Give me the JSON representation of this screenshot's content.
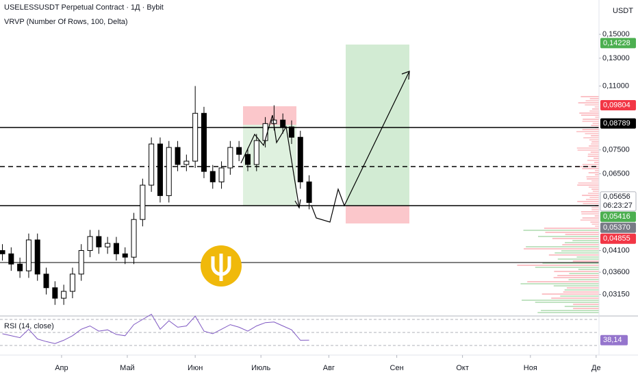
{
  "chart_data": [
    {
      "type": "candlestick",
      "title": "USELESSUSDT Perpetual Contract · 1Д · Bybit",
      "subtitle": "VRVP (Number Of Rows, 100, Delta)",
      "currency": "USDT",
      "log_scale": true,
      "up_color": "#ffffff",
      "down_color": "#000000",
      "x": [
        -27,
        -23,
        -19,
        -15,
        -11,
        -7,
        -3,
        1,
        5,
        9,
        13,
        17,
        21,
        25,
        29,
        33,
        37,
        41,
        45,
        49,
        53,
        57,
        61,
        65,
        69,
        73,
        77,
        81,
        85,
        89,
        93,
        97,
        101,
        105,
        109,
        113
      ],
      "open": [
        0.041,
        0.0402,
        0.0378,
        0.0363,
        0.0437,
        0.0356,
        0.0328,
        0.0308,
        0.0321,
        0.0356,
        0.041,
        0.0446,
        0.0419,
        0.0428,
        0.0402,
        0.0394,
        0.0494,
        0.0607,
        0.0777,
        0.057,
        0.0761,
        0.0687,
        0.0701,
        0.0934,
        0.0659,
        0.0619,
        0.0673,
        0.0761,
        0.073,
        0.0687,
        0.0793,
        0.0878,
        0.0897,
        0.0861,
        0.0809,
        0.0619
      ],
      "high": [
        0.0426,
        0.0418,
        0.0393,
        0.0454,
        0.0454,
        0.037,
        0.0341,
        0.0334,
        0.037,
        0.0426,
        0.0464,
        0.0464,
        0.0445,
        0.0445,
        0.0418,
        0.0514,
        0.0631,
        0.0808,
        0.0808,
        0.0791,
        0.0791,
        0.0729,
        0.11,
        0.0971,
        0.0685,
        0.07,
        0.0791,
        0.0791,
        0.0759,
        0.0825,
        0.0913,
        0.098,
        0.0933,
        0.0895,
        0.0841,
        0.0644
      ],
      "low": [
        0.0386,
        0.0363,
        0.0348,
        0.0348,
        0.0342,
        0.0315,
        0.0296,
        0.0296,
        0.0308,
        0.0342,
        0.0394,
        0.0402,
        0.0402,
        0.0386,
        0.0378,
        0.0378,
        0.0474,
        0.0583,
        0.0547,
        0.0547,
        0.066,
        0.066,
        0.0673,
        0.0633,
        0.0594,
        0.0594,
        0.0646,
        0.0701,
        0.066,
        0.066,
        0.0761,
        0.0843,
        0.0827,
        0.0777,
        0.0594,
        0.0525
      ],
      "close": [
        0.0402,
        0.0378,
        0.0363,
        0.0437,
        0.0356,
        0.0328,
        0.0308,
        0.0321,
        0.0356,
        0.041,
        0.0446,
        0.0419,
        0.0428,
        0.0402,
        0.0394,
        0.0494,
        0.0607,
        0.0777,
        0.057,
        0.0761,
        0.0687,
        0.0701,
        0.0934,
        0.0659,
        0.0619,
        0.0673,
        0.0761,
        0.073,
        0.0687,
        0.0793,
        0.0878,
        0.0897,
        0.0861,
        0.0809,
        0.0619,
        0.0547
      ],
      "xlim": [
        -28.1,
        245.3
      ],
      "xticks": [
        {
          "value": 0,
          "label": "Апр"
        },
        {
          "value": 30,
          "label": "Май"
        },
        {
          "value": 61,
          "label": "Июн"
        },
        {
          "value": 91,
          "label": "Июль"
        },
        {
          "value": 122,
          "label": "Авг"
        },
        {
          "value": 153,
          "label": "Сен"
        },
        {
          "value": 183,
          "label": "Окт"
        },
        {
          "value": 214,
          "label": "Ноя"
        },
        {
          "value": 244,
          "label": "Де"
        }
      ],
      "ylim": [
        0.0278,
        0.1843
      ],
      "yticks": [
        {
          "value": 0.15,
          "label": "0,15000"
        },
        {
          "value": 0.13,
          "label": "0,13000"
        },
        {
          "value": 0.11,
          "label": "0,11000"
        },
        {
          "value": 0.075,
          "label": "0,07500"
        },
        {
          "value": 0.065,
          "label": "0,06500"
        },
        {
          "value": 0.041,
          "label": "0,04100"
        },
        {
          "value": 0.036,
          "label": "0,03600"
        },
        {
          "value": 0.0315,
          "label": "0,03150"
        }
      ],
      "price_labels": [
        {
          "value": 0.14228,
          "label": "0,14228",
          "color": "#4caf50"
        },
        {
          "value": 0.09804,
          "label": "0,09804",
          "color": "#f23645"
        },
        {
          "value": 0.08789,
          "label": "0,08789",
          "color": "#000000"
        },
        {
          "value": 0.05656,
          "label": "0,05656",
          "sublabel": "06:23:27",
          "color": "#ffffff"
        },
        {
          "value": 0.05416,
          "label": "0,05416",
          "color": "#4caf50"
        },
        {
          "value": 0.0537,
          "label": "0,05370",
          "color": "#787b86"
        },
        {
          "value": 0.04855,
          "label": "0,04855",
          "color": "#f23645"
        }
      ]
    },
    {
      "type": "line",
      "title": "RSI (14, close)",
      "color": "#7e57c2",
      "values": [
        48,
        45,
        42,
        55,
        40,
        36,
        33,
        38,
        45,
        55,
        60,
        52,
        54,
        47,
        45,
        62,
        70,
        78,
        55,
        68,
        58,
        60,
        75,
        52,
        48,
        55,
        62,
        58,
        52,
        60,
        65,
        66,
        60,
        54,
        38,
        38.14
      ],
      "ylim": [
        21.6,
        74.2
      ],
      "levels": [
        70,
        50,
        30
      ],
      "last_value": {
        "value": 38.14,
        "label": "38,14"
      }
    }
  ]
}
